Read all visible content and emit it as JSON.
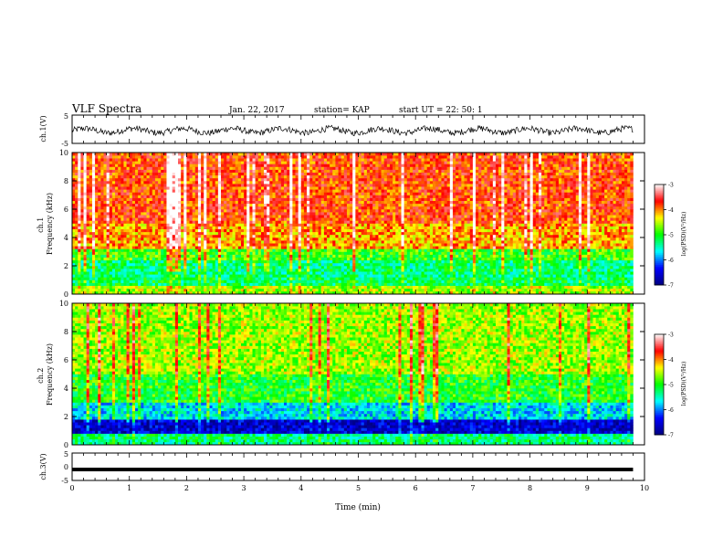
{
  "header": {
    "title": "VLF Spectra",
    "date": "Jan. 22, 2017",
    "station": "station= KAP",
    "start": "start  UT =  22: 50: 1"
  },
  "chart_data": [
    {
      "type": "line",
      "panel": "ch1-waveform",
      "ylabel": "ch.1(V)",
      "ylim": [
        -5,
        5
      ],
      "yticks": [
        "5",
        "-5"
      ],
      "xlim": [
        0,
        10
      ],
      "series": [
        {
          "description": "noisy waveform, amplitude approx -3 to 2 V",
          "color": "#000000"
        }
      ]
    },
    {
      "type": "heatmap",
      "panel": "ch1-spectrogram",
      "ylabel": "ch.1\nFrequency  (kHz)",
      "ylim": [
        0,
        10
      ],
      "yticks": [
        "0",
        "2",
        "4",
        "6",
        "8",
        "10"
      ],
      "xlim": [
        0,
        10
      ],
      "data_end_min": 9.8,
      "bands": [
        {
          "f": [
            0,
            0.6
          ],
          "level": -4.6
        },
        {
          "f": [
            0.6,
            1.3
          ],
          "level": -5.2
        },
        {
          "f": [
            1.3,
            2.5
          ],
          "level": -5.3
        },
        {
          "f": [
            2.5,
            3.3
          ],
          "level": -4.9
        },
        {
          "f": [
            3.3,
            5.0
          ],
          "level": -4.1
        },
        {
          "f": [
            5.0,
            10.0
          ],
          "level": -3.8
        }
      ],
      "colorbar": {
        "label": "log(PSD)(V²/Hz)",
        "range": [
          -7,
          -3
        ],
        "ticks": [
          "-3",
          "-4",
          "-5",
          "-6",
          "-7"
        ]
      }
    },
    {
      "type": "heatmap",
      "panel": "ch2-spectrogram",
      "ylabel": "ch.2\nFrequency  (kHz)",
      "ylim": [
        0,
        10
      ],
      "yticks": [
        "0",
        "2",
        "4",
        "6",
        "8",
        "10"
      ],
      "xlim": [
        0,
        10
      ],
      "data_end_min": 9.8,
      "bands": [
        {
          "f": [
            0,
            0.9
          ],
          "level": -5.3
        },
        {
          "f": [
            0.9,
            1.8
          ],
          "level": -6.6
        },
        {
          "f": [
            1.8,
            3.0
          ],
          "level": -5.7
        },
        {
          "f": [
            3.0,
            5.0
          ],
          "level": -5.0
        },
        {
          "f": [
            5.0,
            10.0
          ],
          "level": -4.6
        }
      ],
      "colorbar": {
        "label": "log(PSD)(V²/Hz)",
        "range": [
          -7,
          -3
        ],
        "ticks": [
          "-3",
          "-4",
          "-5",
          "-6",
          "-7"
        ]
      }
    },
    {
      "type": "line",
      "panel": "ch3-waveform",
      "ylabel": "ch.3(V)",
      "ylim": [
        -5,
        5
      ],
      "yticks": [
        "5",
        "0",
        "-5"
      ],
      "xlim": [
        0,
        10
      ],
      "xlabel": "Time  (min)",
      "xticks": [
        "0",
        "1",
        "2",
        "3",
        "4",
        "5",
        "6",
        "7",
        "8",
        "9",
        "10"
      ],
      "series": [
        {
          "description": "flat at approx -1 V",
          "value": -1.0,
          "color": "#000000"
        }
      ]
    }
  ],
  "colors": {
    "colormap": [
      "#000080",
      "#0000ff",
      "#00ffff",
      "#00ff00",
      "#ffff00",
      "#ff0000",
      "#ffffff"
    ],
    "waveform": "#000000"
  }
}
